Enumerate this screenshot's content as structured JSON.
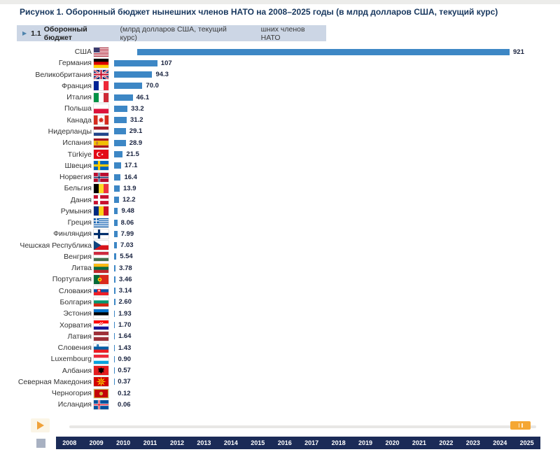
{
  "title": "Рисунок 1. Оборонный бюджет нынешних членов НАТО на 2008–2025 годы (в млрд долларов США, текущий курс)",
  "header": {
    "index": "1.1",
    "label_bold": "Оборонный бюджет",
    "label_units": "(млрд долларов США, текущий курс)",
    "label_extra": "шних членов НАТО"
  },
  "colors": {
    "bar": "#3d87c5",
    "title": "#17375e",
    "band_bg": "#ccd6e5",
    "years_bar": "#1b2b57",
    "accent_orange": "#f5a733"
  },
  "chart_data": {
    "type": "bar",
    "orientation": "horizontal",
    "title": "Оборонный бюджет нынешних членов НАТО, 2025",
    "unit": "млрд долларов США, текущий курс",
    "xlim": [
      0,
      950
    ],
    "bar_color": "#3d87c5",
    "categories": [
      "США",
      "Германия",
      "Великобритания",
      "Франция",
      "Италия",
      "Польша",
      "Канада",
      "Нидерланды",
      "Испания",
      "Türkiye",
      "Швеция",
      "Норвегия",
      "Бельгия",
      "Дания",
      "Румыния",
      "Греция",
      "Финляндия",
      "Чешская Республика",
      "Венгрия",
      "Литва",
      "Португалия",
      "Словакия",
      "Болгария",
      "Эстония",
      "Хорватия",
      "Латвия",
      "Словения",
      "Luxembourg",
      "Албания",
      "Северная Македония",
      "Черногория",
      "Исландия"
    ],
    "values": [
      921,
      107,
      94.3,
      70.0,
      46.1,
      33.2,
      31.2,
      29.1,
      28.9,
      21.5,
      17.1,
      16.4,
      13.9,
      12.2,
      9.48,
      8.06,
      7.99,
      7.03,
      5.54,
      3.78,
      3.46,
      3.14,
      2.6,
      1.93,
      1.7,
      1.64,
      1.43,
      0.9,
      0.57,
      0.37,
      0.12,
      0.06
    ],
    "value_labels": [
      "921",
      "107",
      "94.3",
      "70.0",
      "46.1",
      "33.2",
      "31.2",
      "29.1",
      "28.9",
      "21.5",
      "17.1",
      "16.4",
      "13.9",
      "12.2",
      "9.48",
      "8.06",
      "7.99",
      "7.03",
      "5.54",
      "3.78",
      "3.46",
      "3.14",
      "2.60",
      "1.93",
      "1.70",
      "1.64",
      "1.43",
      "0.90",
      "0.57",
      "0.37",
      "0.12",
      "0.06"
    ]
  },
  "flags": [
    {
      "type": "us",
      "red": "#b22234",
      "white": "#ffffff",
      "canton": "#3c3b6e"
    },
    {
      "type": "h",
      "colors": [
        "#000000",
        "#dd0000",
        "#ffce00"
      ]
    },
    {
      "type": "gb",
      "bg": "#012169",
      "white": "#ffffff",
      "red": "#c8102e"
    },
    {
      "type": "v",
      "colors": [
        "#002395",
        "#ffffff",
        "#ed2939"
      ]
    },
    {
      "type": "v",
      "colors": [
        "#009246",
        "#ffffff",
        "#ce2b37"
      ]
    },
    {
      "type": "h",
      "colors": [
        "#ffffff",
        "#dc143c"
      ]
    },
    {
      "type": "ca",
      "red": "#d52b1e",
      "white": "#ffffff"
    },
    {
      "type": "h",
      "colors": [
        "#ae1c28",
        "#ffffff",
        "#21468b"
      ]
    },
    {
      "type": "es",
      "red": "#aa151b",
      "yellow": "#f1bf00"
    },
    {
      "type": "tr",
      "red": "#e30a17",
      "white": "#ffffff"
    },
    {
      "type": "nordic",
      "bg": "#0065bd",
      "cross": "#fecc00"
    },
    {
      "type": "nordic",
      "bg": "#ba0c2f",
      "cross": "#ffffff",
      "inner": "#00205b"
    },
    {
      "type": "v",
      "colors": [
        "#000000",
        "#fdda24",
        "#ef3340"
      ]
    },
    {
      "type": "nordic",
      "bg": "#c8102e",
      "cross": "#ffffff"
    },
    {
      "type": "v",
      "colors": [
        "#002b7f",
        "#fcd116",
        "#ce1126"
      ]
    },
    {
      "type": "gr",
      "blue": "#0d5eaf",
      "white": "#ffffff"
    },
    {
      "type": "nordic",
      "bg": "#ffffff",
      "cross": "#002f6c"
    },
    {
      "type": "cz",
      "white": "#ffffff",
      "red": "#d7141a",
      "blue": "#11457e"
    },
    {
      "type": "h",
      "colors": [
        "#cd2a3e",
        "#ffffff",
        "#436f4d"
      ]
    },
    {
      "type": "h",
      "colors": [
        "#fdb913",
        "#006a44",
        "#c1272d"
      ]
    },
    {
      "type": "pt",
      "green": "#046a38",
      "red": "#da291c",
      "yellow": "#ffe900"
    },
    {
      "type": "sk",
      "colors": [
        "#ffffff",
        "#0b4ea2",
        "#ee1c25"
      ]
    },
    {
      "type": "h",
      "colors": [
        "#ffffff",
        "#00966e",
        "#d62612"
      ]
    },
    {
      "type": "h",
      "colors": [
        "#0072ce",
        "#000000",
        "#ffffff"
      ]
    },
    {
      "type": "hr",
      "colors": [
        "#ff0000",
        "#ffffff",
        "#171796"
      ]
    },
    {
      "type": "h",
      "colors": [
        "#9e3039",
        "#ffffff",
        "#9e3039"
      ],
      "ratios": [
        0.4,
        0.2,
        0.4
      ]
    },
    {
      "type": "si",
      "colors": [
        "#ffffff",
        "#005da4",
        "#ed1c24"
      ]
    },
    {
      "type": "h",
      "colors": [
        "#ed2939",
        "#ffffff",
        "#00a1de"
      ]
    },
    {
      "type": "al",
      "red": "#e41e20",
      "black": "#000000"
    },
    {
      "type": "mk",
      "red": "#d20000",
      "yellow": "#ffe600"
    },
    {
      "type": "me",
      "red": "#c40308",
      "gold": "#d3ae3b"
    },
    {
      "type": "nordic",
      "bg": "#02529c",
      "cross": "#ffffff",
      "inner": "#dc1e35"
    }
  ],
  "timeline": {
    "years": [
      "2008",
      "2009",
      "2010",
      "2011",
      "2012",
      "2013",
      "2014",
      "2015",
      "2016",
      "2017",
      "2018",
      "2019",
      "2020",
      "2021",
      "2022",
      "2023",
      "2024",
      "2025"
    ],
    "current_year": "2025"
  }
}
